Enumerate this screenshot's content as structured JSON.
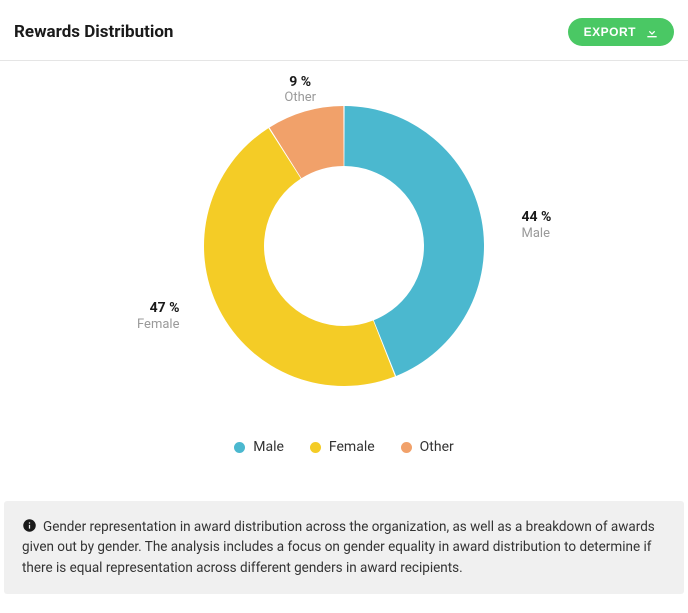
{
  "header": {
    "title": "Rewards Distribution",
    "export_label": "EXPORT"
  },
  "chart": {
    "type": "donut",
    "background_color": "#ffffff",
    "outer_radius": 140,
    "inner_radius": 80,
    "start_angle_deg": 0,
    "slice_gap_deg": 0.5,
    "segments": [
      {
        "key": "male",
        "label": "Male",
        "value": 44,
        "display": "44 %",
        "color": "#4bb8cf"
      },
      {
        "key": "female",
        "label": "Female",
        "value": 47,
        "display": "47 %",
        "color": "#f4cc26"
      },
      {
        "key": "other",
        "label": "Other",
        "value": 9,
        "display": "9 %",
        "color": "#f1a16a"
      }
    ],
    "leader_color": "#bfbfbf",
    "label_value_fontsize": 14,
    "label_name_fontsize": 13,
    "label_name_color": "#9a9a9a",
    "legend": {
      "fontsize": 14,
      "dot_radius": 5.5
    }
  },
  "info": {
    "text": "Gender representation in award distribution across the organization, as well as a breakdown of awards given out by gender. The analysis includes a focus on gender equality in award distribution to determine if there is equal representation across different genders in award recipients."
  }
}
